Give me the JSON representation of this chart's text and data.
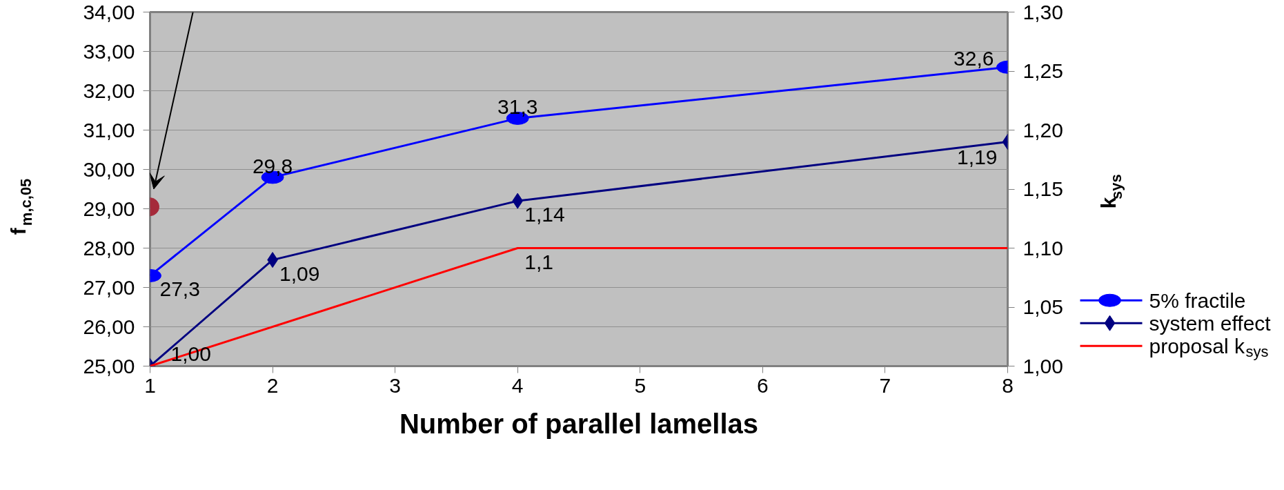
{
  "chart_data": {
    "type": "line",
    "xlabel": "Number of parallel lamellas",
    "ylabel": "f$_{m,c,05}$",
    "y2label": "k$_{sys}$",
    "xlim": [
      1,
      8
    ],
    "xticks": [
      1,
      2,
      3,
      4,
      5,
      6,
      7,
      8
    ],
    "ylim": [
      25,
      34
    ],
    "yticks": [
      {
        "value": 25,
        "label": "25,00"
      },
      {
        "value": 26,
        "label": "26,00"
      },
      {
        "value": 27,
        "label": "27,00"
      },
      {
        "value": 28,
        "label": "28,00"
      },
      {
        "value": 29,
        "label": "29,00"
      },
      {
        "value": 30,
        "label": "30,00"
      },
      {
        "value": 31,
        "label": "31,00"
      },
      {
        "value": 32,
        "label": "32,00"
      },
      {
        "value": 33,
        "label": "33,00"
      },
      {
        "value": 34,
        "label": "34,00"
      }
    ],
    "y2lim": [
      1.0,
      1.3
    ],
    "y2ticks": [
      {
        "value": 1.0,
        "label": "1,00"
      },
      {
        "value": 1.05,
        "label": "1,05"
      },
      {
        "value": 1.1,
        "label": "1,10"
      },
      {
        "value": 1.15,
        "label": "1,15"
      },
      {
        "value": 1.2,
        "label": "1,20"
      },
      {
        "value": 1.25,
        "label": "1,25"
      },
      {
        "value": 1.3,
        "label": "1,30"
      }
    ],
    "grid": "y",
    "legend": "bottom right",
    "series": [
      {
        "name": "5% fractile",
        "color": "#0000ff",
        "x": [
          1,
          2,
          4,
          8
        ],
        "values": [
          27.3,
          29.8,
          31.3,
          32.6
        ],
        "marker": "circle",
        "value_labels": [
          "27,3",
          "29,8",
          "31,3",
          "32,6"
        ]
      },
      {
        "name": "system effect",
        "color": "#000080",
        "axis": "y2",
        "x": [
          1,
          2,
          4,
          8
        ],
        "values": [
          1.0,
          1.09,
          1.14,
          1.19
        ],
        "marker": "diamond",
        "value_labels": [
          "1,00",
          "1,09",
          "1,14",
          "1,19"
        ]
      },
      {
        "name": "proposal k$_{sys}$",
        "color": "#ff0000",
        "axis": "y2",
        "x": [
          1,
          4,
          8
        ],
        "values": [
          1.0,
          1.1,
          1.1
        ],
        "marker": "none",
        "value_labels": [
          null,
          "1,1",
          null
        ]
      },
      {
        "type": "scatter",
        "color": "#a52a3a",
        "x": [
          1
        ],
        "values": [
          29.05
        ],
        "marker": "circle"
      }
    ]
  }
}
